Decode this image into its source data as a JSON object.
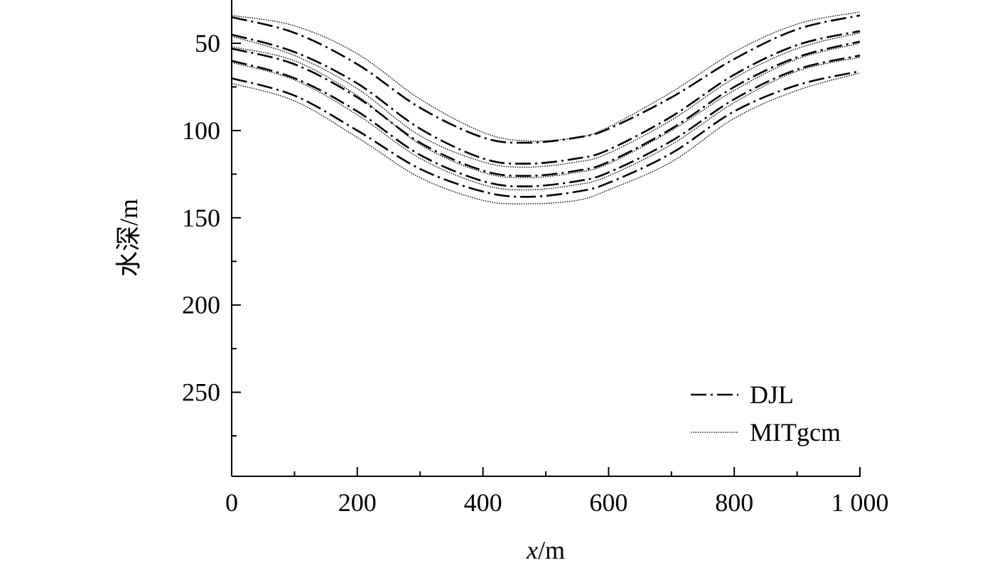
{
  "chart_data": {
    "type": "line",
    "xlabel_var": "x",
    "xlabel_unit": "/m",
    "ylabel": "水深/m",
    "xlim": [
      0,
      1000
    ],
    "ylim": [
      0,
      300
    ],
    "y_inverted": true,
    "x_ticks": [
      0,
      200,
      400,
      600,
      800,
      1000
    ],
    "x_tick_labels": [
      "0",
      "200",
      "400",
      "600",
      "800",
      "1 000"
    ],
    "y_ticks": [
      50,
      100,
      150,
      200,
      250
    ],
    "y_tick_labels": [
      "50",
      "100",
      "150",
      "200",
      "250"
    ],
    "legend": {
      "position": "bottom-right",
      "entries": [
        {
          "label": "DJL",
          "style": "dash-dot"
        },
        {
          "label": "MITgcm",
          "style": "dotted"
        }
      ]
    },
    "series": [
      {
        "group": "DJL",
        "style": "dash-dot",
        "x": [
          0,
          100,
          200,
          300,
          400,
          470,
          550,
          600,
          700,
          800,
          900,
          1000
        ],
        "y": [
          35,
          44,
          62,
          87,
          104,
          107,
          104,
          99,
          81,
          59,
          42,
          34
        ]
      },
      {
        "group": "DJL",
        "style": "dash-dot",
        "x": [
          0,
          100,
          200,
          300,
          400,
          470,
          550,
          600,
          700,
          800,
          900,
          1000
        ],
        "y": [
          45,
          55,
          73,
          99,
          116,
          119,
          116,
          111,
          92,
          68,
          51,
          43
        ]
      },
      {
        "group": "DJL",
        "style": "dash-dot",
        "x": [
          0,
          100,
          200,
          300,
          400,
          470,
          550,
          600,
          700,
          800,
          900,
          1000
        ],
        "y": [
          53,
          62,
          81,
          107,
          123,
          126,
          123,
          118,
          99,
          75,
          58,
          49
        ]
      },
      {
        "group": "DJL",
        "style": "dash-dot",
        "x": [
          0,
          100,
          200,
          300,
          400,
          470,
          550,
          600,
          700,
          800,
          900,
          1000
        ],
        "y": [
          60,
          70,
          89,
          114,
          129,
          132,
          129,
          124,
          106,
          82,
          65,
          57
        ]
      },
      {
        "group": "DJL",
        "style": "dash-dot",
        "x": [
          0,
          100,
          200,
          300,
          400,
          470,
          550,
          600,
          700,
          800,
          900,
          1000
        ],
        "y": [
          70,
          80,
          100,
          122,
          135,
          138,
          135,
          130,
          113,
          89,
          74,
          66
        ]
      },
      {
        "group": "MITgcm",
        "style": "dotted",
        "x": [
          0,
          100,
          200,
          300,
          400,
          470,
          550,
          600,
          700,
          800,
          900,
          1000
        ],
        "y": [
          34,
          40,
          56,
          82,
          101,
          106,
          104,
          98,
          78,
          55,
          39,
          32
        ]
      },
      {
        "group": "MITgcm",
        "style": "dotted",
        "x": [
          0,
          100,
          200,
          300,
          400,
          470,
          550,
          600,
          700,
          800,
          900,
          1000
        ],
        "y": [
          46,
          57,
          76,
          103,
          118,
          121,
          118,
          113,
          94,
          70,
          53,
          44
        ]
      },
      {
        "group": "MITgcm",
        "style": "dotted",
        "x": [
          0,
          100,
          200,
          300,
          400,
          470,
          550,
          600,
          700,
          800,
          900,
          1000
        ],
        "y": [
          52,
          60,
          80,
          108,
          124,
          127,
          124,
          119,
          100,
          77,
          59,
          50
        ]
      },
      {
        "group": "MITgcm",
        "style": "dotted",
        "x": [
          0,
          100,
          200,
          300,
          400,
          470,
          550,
          600,
          700,
          800,
          900,
          1000
        ],
        "y": [
          61,
          71,
          91,
          116,
          131,
          134,
          131,
          126,
          108,
          84,
          66,
          58
        ]
      },
      {
        "group": "MITgcm",
        "style": "dotted",
        "x": [
          0,
          100,
          200,
          300,
          400,
          470,
          550,
          600,
          700,
          800,
          900,
          1000
        ],
        "y": [
          73,
          83,
          104,
          127,
          140,
          142,
          140,
          134,
          118,
          93,
          77,
          67
        ]
      }
    ]
  }
}
